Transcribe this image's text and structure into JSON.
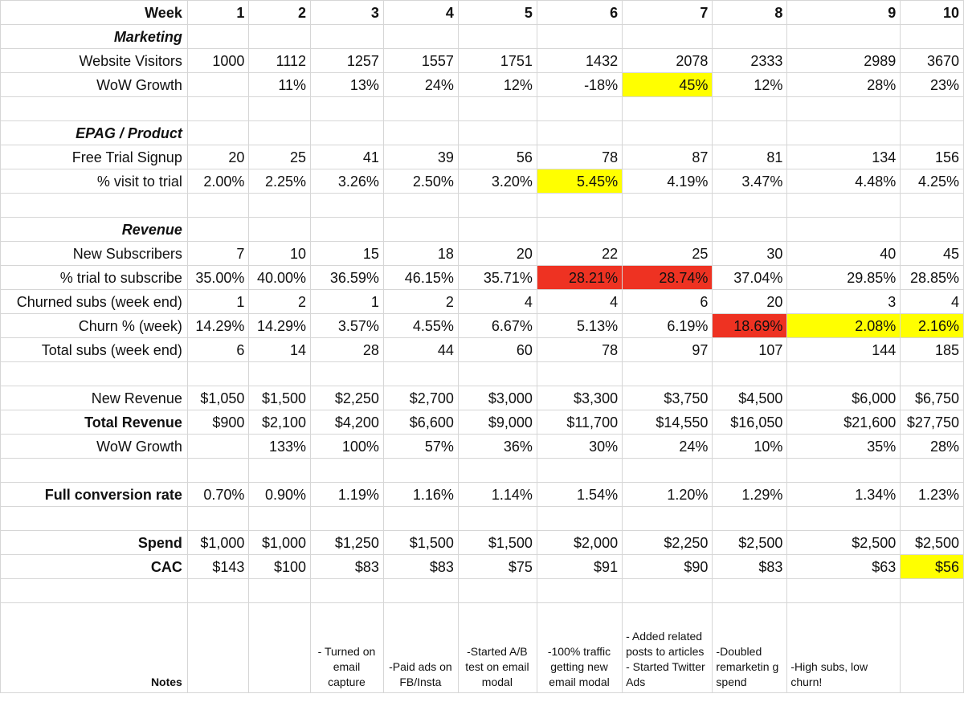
{
  "colors": {
    "highlight_yellow": "#ffff00",
    "highlight_red": "#ee3222",
    "gridline": "#d6d6d6"
  },
  "header": {
    "label": "Week",
    "weeks": [
      "1",
      "2",
      "3",
      "4",
      "5",
      "6",
      "7",
      "8",
      "9",
      "10"
    ]
  },
  "marketing": {
    "title": "Marketing",
    "visitors": {
      "label": "Website Visitors",
      "values": [
        "1000",
        "1112",
        "1257",
        "1557",
        "1751",
        "1432",
        "2078",
        "2333",
        "2989",
        "3670"
      ]
    },
    "wow_growth": {
      "label": "WoW Growth",
      "values": [
        "",
        "11%",
        "13%",
        "24%",
        "12%",
        "-18%",
        "45%",
        "12%",
        "28%",
        "23%"
      ]
    }
  },
  "product": {
    "title": "EPAG / Product",
    "trial_signup": {
      "label": "Free Trial Signup",
      "values": [
        "20",
        "25",
        "41",
        "39",
        "56",
        "78",
        "87",
        "81",
        "134",
        "156"
      ]
    },
    "visit_to_trial": {
      "label": "% visit to trial",
      "values": [
        "2.00%",
        "2.25%",
        "3.26%",
        "2.50%",
        "3.20%",
        "5.45%",
        "4.19%",
        "3.47%",
        "4.48%",
        "4.25%"
      ]
    }
  },
  "revenue": {
    "title": "Revenue",
    "new_subscribers": {
      "label": "New Subscribers",
      "values": [
        "7",
        "10",
        "15",
        "18",
        "20",
        "22",
        "25",
        "30",
        "40",
        "45"
      ]
    },
    "trial_to_subscribe": {
      "label": "% trial to subscribe",
      "values": [
        "35.00%",
        "40.00%",
        "36.59%",
        "46.15%",
        "35.71%",
        "28.21%",
        "28.74%",
        "37.04%",
        "29.85%",
        "28.85%"
      ]
    },
    "churned_subs": {
      "label": "Churned subs (week end)",
      "values": [
        "1",
        "2",
        "1",
        "2",
        "4",
        "4",
        "6",
        "20",
        "3",
        "4"
      ]
    },
    "churn_pct": {
      "label": "Churn % (week)",
      "values": [
        "14.29%",
        "14.29%",
        "3.57%",
        "4.55%",
        "6.67%",
        "5.13%",
        "6.19%",
        "18.69%",
        "2.08%",
        "2.16%"
      ]
    },
    "total_subs": {
      "label": "Total subs (week end)",
      "values": [
        "6",
        "14",
        "28",
        "44",
        "60",
        "78",
        "97",
        "107",
        "144",
        "185"
      ]
    },
    "new_revenue": {
      "label": "New Revenue",
      "values": [
        "$1,050",
        "$1,500",
        "$2,250",
        "$2,700",
        "$3,000",
        "$3,300",
        "$3,750",
        "$4,500",
        "$6,000",
        "$6,750"
      ]
    },
    "total_revenue": {
      "label": "Total Revenue",
      "values": [
        "$900",
        "$2,100",
        "$4,200",
        "$6,600",
        "$9,000",
        "$11,700",
        "$14,550",
        "$16,050",
        "$21,600",
        "$27,750"
      ]
    },
    "wow_growth": {
      "label": "WoW Growth",
      "values": [
        "",
        "133%",
        "100%",
        "57%",
        "36%",
        "30%",
        "24%",
        "10%",
        "35%",
        "28%"
      ]
    }
  },
  "conversion": {
    "label": "Full conversion rate",
    "values": [
      "0.70%",
      "0.90%",
      "1.19%",
      "1.16%",
      "1.14%",
      "1.54%",
      "1.20%",
      "1.29%",
      "1.34%",
      "1.23%"
    ]
  },
  "spend": {
    "label": "Spend",
    "values": [
      "$1,000",
      "$1,000",
      "$1,250",
      "$1,500",
      "$1,500",
      "$2,000",
      "$2,250",
      "$2,500",
      "$2,500",
      "$2,500"
    ]
  },
  "cac": {
    "label": "CAC",
    "values": [
      "$143",
      "$100",
      "$83",
      "$83",
      "$75",
      "$91",
      "$90",
      "$83",
      "$63",
      "$56"
    ]
  },
  "notes": {
    "label": "Notes",
    "values": [
      "",
      "",
      "- Turned on email capture",
      "-Paid ads on FB/Insta",
      "-Started A/B test on email modal",
      "-100% traffic getting new email modal",
      "- Added related posts to articles\n- Started Twitter Ads",
      "-Doubled remarketin g spend",
      "-High subs, low churn!",
      ""
    ]
  }
}
